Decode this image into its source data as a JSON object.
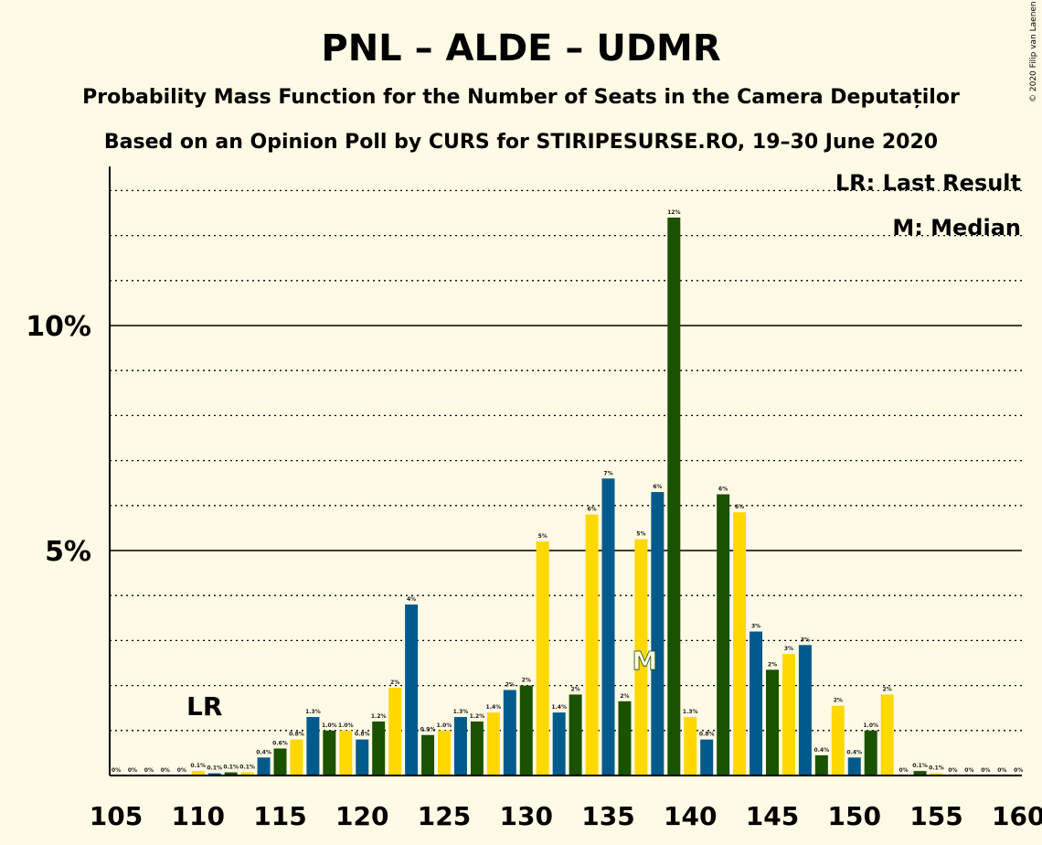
{
  "chart_data": {
    "type": "bar",
    "title": "PNL – ALDE – UDMR",
    "subtitle": "Probability Mass Function for the Number of Seats in the Camera Deputaților",
    "subtitle2": "Based on an Opinion Poll by CURS for STIRIPESURSE.RO, 19–30 June 2020",
    "credit": "© 2020 Filip van Laenen",
    "legend": [
      "LR: Last Result",
      "M: Median"
    ],
    "last_result_label": "LR",
    "last_result_seat": 110,
    "median_label": "M",
    "median_seat": 137,
    "xlim": [
      105,
      160
    ],
    "ylim": [
      0,
      13.5
    ],
    "x_ticks": [
      "105",
      "110",
      "115",
      "120",
      "125",
      "130",
      "135",
      "140",
      "145",
      "150",
      "155",
      "160"
    ],
    "y_ticks": [
      {
        "value": 5,
        "label": "5%"
      },
      {
        "value": 10,
        "label": "10%"
      }
    ],
    "colors": [
      "#005a8c",
      "#1a5200",
      "#ffd800"
    ],
    "x": [
      105,
      106,
      107,
      108,
      109,
      110,
      111,
      112,
      113,
      114,
      115,
      116,
      117,
      118,
      119,
      120,
      121,
      122,
      123,
      124,
      125,
      126,
      127,
      128,
      129,
      130,
      131,
      132,
      133,
      134,
      135,
      136,
      137,
      138,
      139,
      140,
      141,
      142,
      143,
      144,
      145,
      146,
      147,
      148,
      149,
      150,
      151,
      152,
      153,
      154,
      155,
      156,
      157,
      158,
      159,
      160
    ],
    "values": [
      0,
      0,
      0,
      0,
      0,
      0.1,
      0.05,
      0.07,
      0.07,
      0.4,
      0.6,
      0.8,
      1.3,
      1.0,
      1.0,
      0.8,
      1.2,
      1.95,
      3.8,
      0.9,
      1.0,
      1.3,
      1.2,
      1.4,
      1.9,
      2.0,
      5.2,
      1.4,
      1.8,
      5.8,
      6.6,
      1.65,
      5.25,
      6.3,
      12.4,
      1.3,
      0.8,
      6.25,
      5.85,
      3.2,
      2.35,
      2.7,
      2.9,
      0.45,
      1.55,
      0.4,
      1.0,
      1.8,
      0,
      0.1,
      0.05,
      0,
      0,
      0,
      0,
      0
    ],
    "labels": [
      "0%",
      "0%",
      "0%",
      "0%",
      "0%",
      "0.1%",
      "0.1%",
      "0.1%",
      "0.1%",
      "0.4%",
      "0.6%",
      "0.8%",
      "1.3%",
      "1.0%",
      "1.0%",
      "0.8%",
      "1.2%",
      "2%",
      "4%",
      "0.9%",
      "1.0%",
      "1.3%",
      "1.2%",
      "1.4%",
      "2%",
      "2%",
      "5%",
      "1.4%",
      "2%",
      "6%",
      "7%",
      "2%",
      "5%",
      "6%",
      "12%",
      "1.3%",
      "0.8%",
      "6%",
      "6%",
      "3%",
      "2%",
      "3%",
      "3%",
      "0.4%",
      "2%",
      "0.4%",
      "1.0%",
      "2%",
      "0%",
      "0.1%",
      "0.1%",
      "0%",
      "0%",
      "0%",
      "0%",
      "0%"
    ]
  }
}
